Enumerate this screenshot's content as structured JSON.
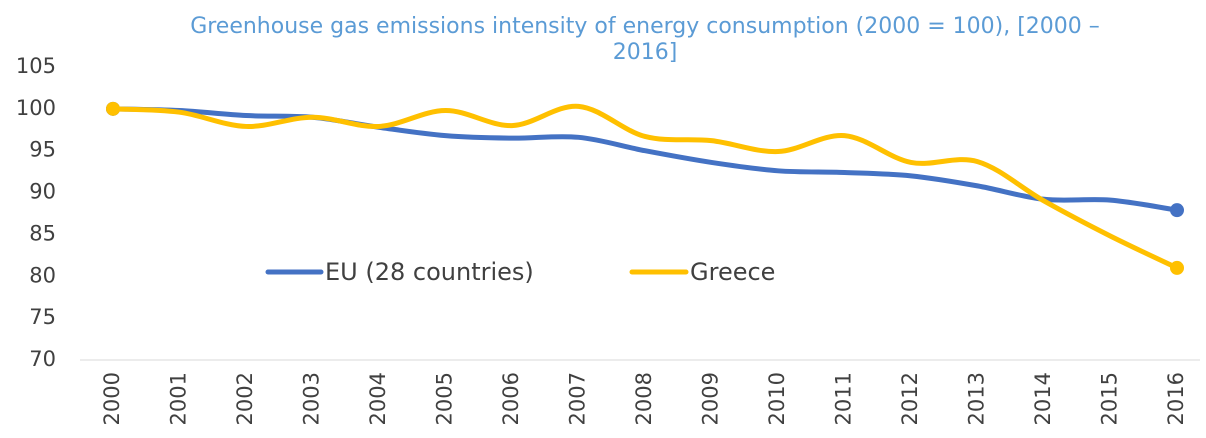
{
  "chart_data": {
    "type": "line",
    "title": "Greenhouse gas emissions intensity of energy consumption (2000 = 100), [2000 – 2016]",
    "categories": [
      "2000",
      "2001",
      "2002",
      "2003",
      "2004",
      "2005",
      "2006",
      "2007",
      "2008",
      "2009",
      "2010",
      "2011",
      "2012",
      "2013",
      "2014",
      "2015",
      "2016"
    ],
    "series": [
      {
        "name": "EU (28 countries)",
        "color": "#4472c4",
        "values": [
          100,
          99.8,
          99.2,
          99.0,
          97.8,
          96.8,
          96.5,
          96.6,
          95.0,
          93.6,
          92.6,
          92.4,
          92.0,
          90.8,
          89.2,
          89.1,
          87.9
        ]
      },
      {
        "name": "Greece",
        "color": "#ffc000",
        "values": [
          100,
          99.6,
          97.9,
          99.0,
          97.9,
          99.8,
          98.0,
          100.3,
          96.7,
          96.2,
          94.9,
          96.8,
          93.6,
          93.7,
          89.0,
          84.8,
          81.0
        ]
      }
    ],
    "ylim": [
      70,
      105
    ],
    "yticks": [
      70,
      75,
      80,
      85,
      90,
      95,
      100,
      105
    ],
    "grid": false,
    "legend": "center"
  }
}
